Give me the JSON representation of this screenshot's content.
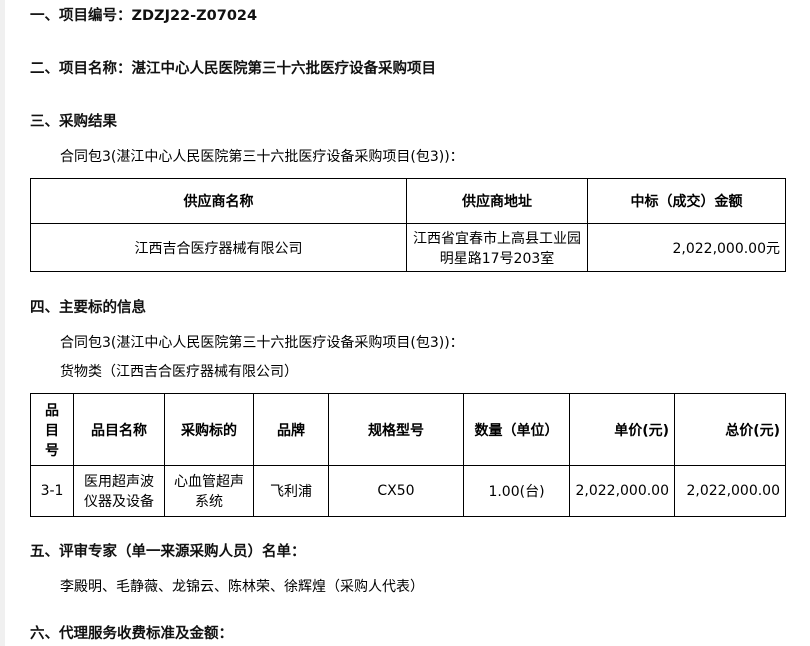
{
  "sections": {
    "s1": "一、项目编号：ZDZJ22-Z07024",
    "s2": "二、项目名称：湛江中心人民医院第三十六批医疗设备采购项目",
    "s3": "三、采购结果",
    "s4": "四、主要标的信息",
    "s5": "五、评审专家（单一来源采购人员）名单：",
    "s6": "六、代理服务收费标准及金额："
  },
  "result": {
    "package": "合同包3(湛江中心人民医院第三十六批医疗设备采购项目(包3))：",
    "headers": [
      "供应商名称",
      "供应商地址",
      "中标（成交）金额"
    ],
    "row": [
      "江西吉合医疗器械有限公司",
      "江西省宜春市上高县工业园明星路17号203室",
      "2,022,000.00元"
    ]
  },
  "subject": {
    "package": "合同包3(湛江中心人民医院第三十六批医疗设备采购项目(包3))：",
    "category": "货物类（江西吉合医疗器械有限公司）",
    "headers": [
      "品目号",
      "品目名称",
      "采购标的",
      "品牌",
      "规格型号",
      "数量（单位）",
      "单价(元)",
      "总价(元)"
    ],
    "row": [
      "3-1",
      "医用超声波仪器及设备",
      "心血管超声系统",
      "飞利浦",
      "CX50",
      "1.00(台)",
      "2,022,000.00",
      "2,022,000.00"
    ]
  },
  "experts": "李殿明、毛静薇、龙锦云、陈林荣、徐辉煌（采购人代表）"
}
